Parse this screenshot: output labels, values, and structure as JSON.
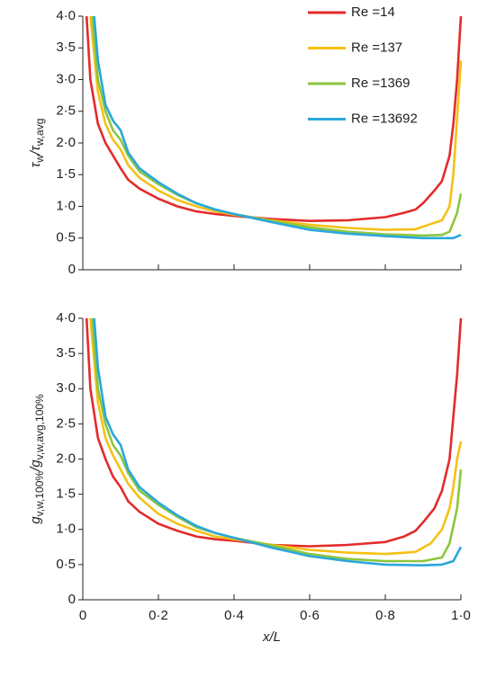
{
  "chart_data": [
    {
      "type": "line",
      "legend": "upper right",
      "ylabel_parts": [
        {
          "text": "τ"
        },
        {
          "text": "w",
          "sub": true
        },
        {
          "text": "/τ"
        },
        {
          "text": "w,avg",
          "sub": true
        }
      ],
      "xlim": [
        0,
        1.0
      ],
      "xticks": [
        0,
        0.2,
        0.4,
        0.6,
        0.8,
        1.0
      ],
      "ylim": [
        0,
        4.0
      ],
      "yticks": [
        0,
        {
          "value": 0.5,
          "label": "0·5"
        },
        {
          "value": 1.0,
          "label": "1·0"
        },
        {
          "value": 1.5,
          "label": "1·5"
        },
        {
          "value": 2.0,
          "label": "2·0"
        },
        {
          "value": 2.5,
          "label": "2·5"
        },
        {
          "value": 3.0,
          "label": "3·0"
        },
        {
          "value": 3.5,
          "label": "3·5"
        },
        {
          "value": 4.0,
          "label": "4·0"
        }
      ],
      "series": [
        {
          "name": "Re =14",
          "color": "#e32b2b",
          "x": [
            0.01,
            0.02,
            0.04,
            0.06,
            0.08,
            0.1,
            0.12,
            0.15,
            0.2,
            0.25,
            0.3,
            0.35,
            0.4,
            0.5,
            0.6,
            0.7,
            0.8,
            0.85,
            0.88,
            0.9,
            0.93,
            0.95,
            0.97,
            0.98,
            0.99,
            1.0
          ],
          "values": [
            4.0,
            3.0,
            2.3,
            2.0,
            1.8,
            1.6,
            1.42,
            1.28,
            1.12,
            1.0,
            0.92,
            0.88,
            0.85,
            0.8,
            0.77,
            0.78,
            0.83,
            0.9,
            0.95,
            1.05,
            1.25,
            1.4,
            1.8,
            2.3,
            3.0,
            4.0
          ]
        },
        {
          "name": "Re =137",
          "color": "#f5c116",
          "x": [
            0.02,
            0.04,
            0.06,
            0.08,
            0.1,
            0.12,
            0.15,
            0.2,
            0.25,
            0.3,
            0.35,
            0.4,
            0.5,
            0.6,
            0.7,
            0.8,
            0.88,
            0.92,
            0.95,
            0.97,
            0.98,
            0.99,
            1.0
          ],
          "values": [
            4.0,
            2.8,
            2.3,
            2.05,
            1.9,
            1.65,
            1.45,
            1.25,
            1.1,
            1.0,
            0.92,
            0.87,
            0.78,
            0.71,
            0.66,
            0.63,
            0.64,
            0.72,
            0.78,
            1.0,
            1.5,
            2.4,
            3.3
          ]
        },
        {
          "name": "Re =1369",
          "color": "#8cc63f",
          "x": [
            0.025,
            0.04,
            0.06,
            0.08,
            0.1,
            0.12,
            0.15,
            0.2,
            0.25,
            0.3,
            0.35,
            0.4,
            0.5,
            0.6,
            0.7,
            0.8,
            0.9,
            0.95,
            0.97,
            0.99,
            1.0
          ],
          "values": [
            4.0,
            3.0,
            2.5,
            2.2,
            2.05,
            1.8,
            1.55,
            1.35,
            1.18,
            1.05,
            0.95,
            0.88,
            0.77,
            0.67,
            0.6,
            0.56,
            0.54,
            0.55,
            0.6,
            0.9,
            1.2
          ]
        },
        {
          "name": "Re =13692",
          "color": "#2aa7dc",
          "x": [
            0.03,
            0.04,
            0.06,
            0.08,
            0.1,
            0.12,
            0.15,
            0.2,
            0.25,
            0.3,
            0.35,
            0.4,
            0.5,
            0.6,
            0.7,
            0.8,
            0.9,
            0.95,
            0.98,
            1.0
          ],
          "values": [
            4.0,
            3.3,
            2.6,
            2.35,
            2.2,
            1.85,
            1.6,
            1.38,
            1.2,
            1.05,
            0.95,
            0.88,
            0.75,
            0.63,
            0.57,
            0.53,
            0.5,
            0.5,
            0.5,
            0.55
          ]
        }
      ]
    },
    {
      "type": "line",
      "ylabel_parts": [
        {
          "text": "g"
        },
        {
          "text": "v,w,100%",
          "sub": true
        },
        {
          "text": "/g"
        },
        {
          "text": "v,w,avg,100%",
          "sub": true
        }
      ],
      "xlabel": "x/L",
      "xlim": [
        0,
        1.0
      ],
      "xticks": [
        0,
        {
          "value": 0.2,
          "label": "0·2"
        },
        {
          "value": 0.4,
          "label": "0·4"
        },
        {
          "value": 0.6,
          "label": "0·6"
        },
        {
          "value": 0.8,
          "label": "0·8"
        },
        {
          "value": 1.0,
          "label": "1·0"
        }
      ],
      "ylim": [
        0,
        4.0
      ],
      "yticks": [
        0,
        {
          "value": 0.5,
          "label": "0·5"
        },
        {
          "value": 1.0,
          "label": "1·0"
        },
        {
          "value": 1.5,
          "label": "1·5"
        },
        {
          "value": 2.0,
          "label": "2·0"
        },
        {
          "value": 2.5,
          "label": "2·5"
        },
        {
          "value": 3.0,
          "label": "3·0"
        },
        {
          "value": 3.5,
          "label": "3·5"
        },
        {
          "value": 4.0,
          "label": "4·0"
        }
      ],
      "series": [
        {
          "color": "#e32b2b",
          "x": [
            0.01,
            0.02,
            0.04,
            0.06,
            0.08,
            0.1,
            0.12,
            0.15,
            0.2,
            0.25,
            0.3,
            0.35,
            0.4,
            0.5,
            0.6,
            0.7,
            0.8,
            0.85,
            0.88,
            0.9,
            0.93,
            0.95,
            0.97,
            0.98,
            0.99,
            1.0
          ],
          "values": [
            4.0,
            3.0,
            2.3,
            2.0,
            1.75,
            1.6,
            1.4,
            1.25,
            1.08,
            0.98,
            0.9,
            0.86,
            0.84,
            0.78,
            0.76,
            0.78,
            0.82,
            0.9,
            0.98,
            1.1,
            1.3,
            1.55,
            2.0,
            2.6,
            3.2,
            4.0
          ]
        },
        {
          "color": "#f5c116",
          "x": [
            0.02,
            0.04,
            0.06,
            0.08,
            0.1,
            0.12,
            0.15,
            0.2,
            0.25,
            0.3,
            0.35,
            0.4,
            0.5,
            0.6,
            0.7,
            0.8,
            0.88,
            0.92,
            0.95,
            0.97,
            0.98,
            0.99,
            1.0
          ],
          "values": [
            4.0,
            2.8,
            2.3,
            2.05,
            1.85,
            1.65,
            1.45,
            1.22,
            1.08,
            0.98,
            0.9,
            0.86,
            0.78,
            0.71,
            0.67,
            0.65,
            0.68,
            0.8,
            1.0,
            1.3,
            1.6,
            2.0,
            2.25
          ]
        },
        {
          "color": "#8cc63f",
          "x": [
            0.025,
            0.04,
            0.06,
            0.08,
            0.1,
            0.12,
            0.15,
            0.2,
            0.25,
            0.3,
            0.35,
            0.4,
            0.5,
            0.6,
            0.7,
            0.8,
            0.9,
            0.95,
            0.97,
            0.99,
            1.0
          ],
          "values": [
            4.0,
            3.0,
            2.5,
            2.2,
            2.05,
            1.8,
            1.55,
            1.35,
            1.18,
            1.03,
            0.95,
            0.88,
            0.77,
            0.65,
            0.58,
            0.55,
            0.55,
            0.6,
            0.8,
            1.3,
            1.85
          ]
        },
        {
          "color": "#2aa7dc",
          "x": [
            0.03,
            0.04,
            0.06,
            0.08,
            0.1,
            0.12,
            0.15,
            0.2,
            0.25,
            0.3,
            0.35,
            0.4,
            0.5,
            0.6,
            0.7,
            0.8,
            0.9,
            0.95,
            0.98,
            1.0
          ],
          "values": [
            4.0,
            3.3,
            2.6,
            2.35,
            2.2,
            1.85,
            1.6,
            1.38,
            1.2,
            1.05,
            0.95,
            0.88,
            0.74,
            0.62,
            0.55,
            0.5,
            0.49,
            0.5,
            0.55,
            0.75
          ]
        }
      ]
    }
  ]
}
